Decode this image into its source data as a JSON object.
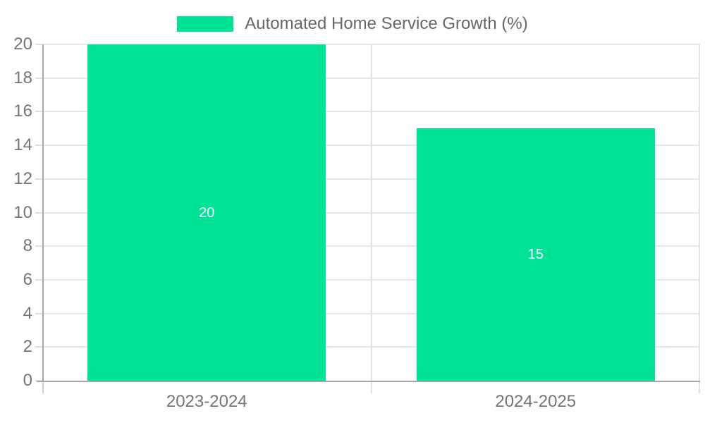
{
  "chart_data": {
    "type": "bar",
    "title": "Automated Home Service Growth (%)",
    "categories": [
      "2023-2024",
      "2024-2025"
    ],
    "values": [
      20,
      15
    ],
    "data_labels": [
      "20",
      "15"
    ],
    "xlabel": "",
    "ylabel": "",
    "ylim": [
      0,
      20
    ],
    "ytick_step": 2,
    "ytick_labels": [
      "0",
      "2",
      "4",
      "6",
      "8",
      "10",
      "12",
      "14",
      "16",
      "18",
      "20"
    ],
    "grid": true,
    "legend_position": "top-center",
    "bar_color": "#00E396",
    "data_label_color": "#ffffff"
  },
  "colors": {
    "accent_green": "#00E396",
    "gridline": "#e7e7e7",
    "axis_line": "#a6a6a6",
    "tick": "#dedede",
    "axis_label_text": "#757575",
    "legend_text": "#666666",
    "background": "#ffffff"
  }
}
